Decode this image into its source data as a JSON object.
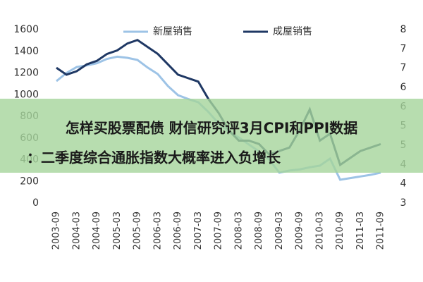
{
  "chart_data": {
    "type": "line",
    "categories": [
      "2003-09",
      null,
      "2004-03",
      null,
      "2004-09",
      null,
      "2005-03",
      null,
      "2005-09",
      null,
      "2006-03",
      null,
      "2006-09",
      null,
      "2007-03",
      null,
      "2007-09",
      null,
      "2008-03",
      null,
      "2008-09",
      null,
      "2009-03",
      null,
      "2009-09",
      null,
      "2010-03",
      null,
      "2010-09",
      null,
      "2011-03",
      null,
      "2011-09"
    ],
    "series": [
      {
        "name": "新屋销售",
        "color": "#9dc3e6",
        "values": [
          1125,
          1200,
          1255,
          1270,
          1290,
          1330,
          1350,
          1340,
          1320,
          1250,
          1190,
          1080,
          995,
          960,
          930,
          840,
          735,
          660,
          605,
          540,
          475,
          400,
          280,
          300,
          310,
          330,
          345,
          410,
          215,
          230,
          245,
          260,
          280
        ]
      },
      {
        "name": "成屋销售",
        "color": "#1f3864",
        "axis": "y2",
        "values": [
          6.9,
          6.7,
          6.8,
          7.0,
          7.1,
          7.3,
          7.4,
          7.6,
          7.7,
          7.5,
          7.3,
          7.0,
          6.7,
          6.6,
          6.5,
          6.0,
          5.6,
          5.1,
          4.8,
          4.8,
          4.7,
          4.4,
          4.5,
          4.6,
          5.1,
          5.7,
          4.8,
          5.0,
          4.1,
          4.3,
          4.5,
          4.6,
          4.7
        ]
      }
    ],
    "ylim": [
      0,
      1600
    ],
    "yticks": [
      0,
      200,
      400,
      600,
      800,
      1000,
      1200,
      1400,
      1600
    ],
    "y2lim": [
      3,
      8
    ],
    "y2ticks": [
      3,
      {
        "value": 3.556,
        "label": "4"
      },
      {
        "value": 4.111,
        "label": "4"
      },
      {
        "value": 4.667,
        "label": "5"
      },
      {
        "value": 5.222,
        "label": "5"
      },
      {
        "value": 5.778,
        "label": "6"
      },
      {
        "value": 6.333,
        "label": "6"
      },
      {
        "value": 6.889,
        "label": "7"
      },
      {
        "value": 7.444,
        "label": "7"
      },
      8
    ],
    "annotations": [
      "怎样买股票配债 财信研究评3月CPI和PPI数据",
      "：二季度综合通胀指数大概率进入负增长"
    ]
  }
}
